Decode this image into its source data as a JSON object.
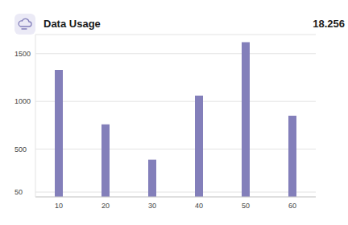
{
  "chart_data": {
    "type": "bar",
    "title": "Data Usage",
    "subtitle": "18.256",
    "categories": [
      "10",
      "20",
      "30",
      "40",
      "50",
      "60"
    ],
    "values": [
      1330,
      760,
      390,
      1060,
      1620,
      850
    ],
    "color": "#837fba",
    "ylim": [
      0,
      1700
    ],
    "yticks": [
      50,
      500,
      1000,
      1500
    ],
    "grid": true
  }
}
